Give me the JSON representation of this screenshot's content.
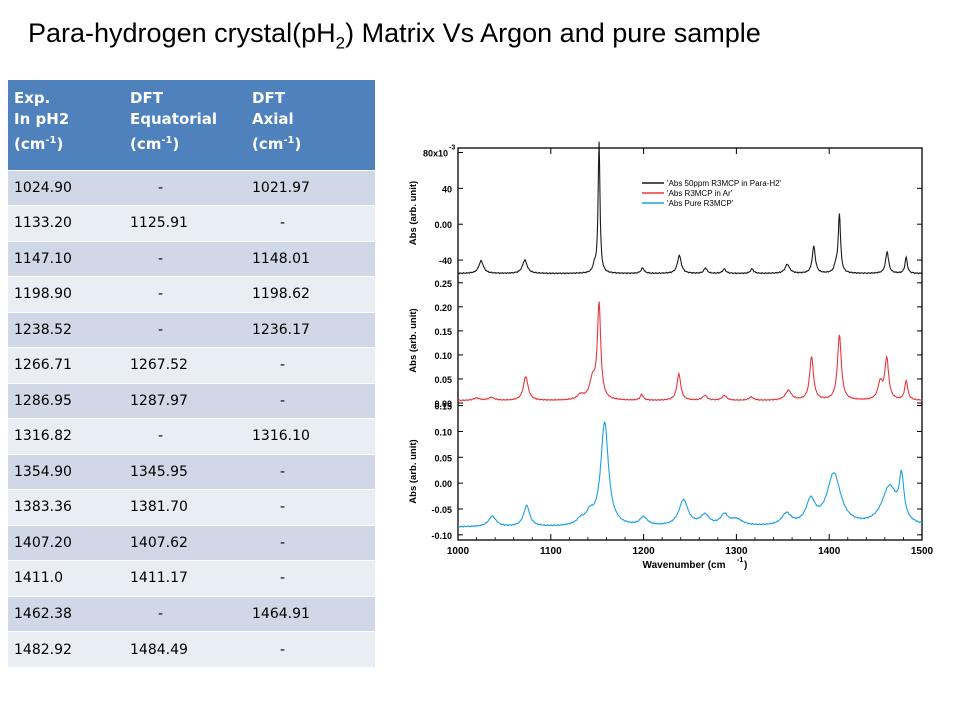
{
  "title": {
    "prefix": "Para-hydrogen crystal(pH",
    "sub": "2",
    "suffix": ") Matrix Vs Argon and pure sample"
  },
  "table": {
    "headers": [
      {
        "line1": "Exp.",
        "line2": "In pH2",
        "unit": "(cm",
        "exp": "-1",
        "close": ")"
      },
      {
        "line1": "DFT",
        "line2": "Equatorial",
        "unit": "(cm",
        "exp": "-1",
        "close": ")"
      },
      {
        "line1": "DFT",
        "line2": "Axial",
        "unit": "(cm",
        "exp": "-1",
        "close": ")"
      }
    ],
    "rows": [
      [
        "1024.90",
        "-",
        "1021.97"
      ],
      [
        "1133.20",
        "1125.91",
        "-"
      ],
      [
        "1147.10",
        "-",
        "1148.01"
      ],
      [
        "1198.90",
        "-",
        "1198.62"
      ],
      [
        "1238.52",
        "-",
        "1236.17"
      ],
      [
        "1266.71",
        "1267.52",
        "-"
      ],
      [
        "1286.95",
        "1287.97",
        "-"
      ],
      [
        "1316.82",
        "-",
        "1316.10"
      ],
      [
        "1354.90",
        "1345.95",
        "-"
      ],
      [
        "1383.36",
        "1381.70",
        "-"
      ],
      [
        "1407.20",
        "1407.62",
        "-"
      ],
      [
        "1411.0",
        "1411.17",
        "-"
      ],
      [
        "1462.38",
        "-",
        "1464.91"
      ],
      [
        "1482.92",
        "1484.49",
        "-"
      ]
    ]
  },
  "chart_data": {
    "type": "line",
    "xlabel": "Wavenumber (cm",
    "xlabel_exp": "-1",
    "xlabel_close": ")",
    "xlim": [
      1000,
      1500
    ],
    "xticks": [
      1000,
      1100,
      1200,
      1300,
      1400,
      1500
    ],
    "legend": {
      "placement": "top-right",
      "entries": [
        "'Abs 50ppm R3MCP in Para-H2'",
        "'Abs R3MCP in Ar'",
        "'Abs Pure R3MCP'"
      ]
    },
    "panels": [
      {
        "ylabel": "Abs (arb. unit)",
        "ylim": [
          -60,
          85
        ],
        "yticks": [
          -40,
          0,
          40
        ],
        "top_tick_label": "80x10",
        "top_tick_exp": "-3",
        "series": {
          "color": "#1a1a1a",
          "baseline": -55,
          "peaks": [
            [
              1024.9,
              3,
              14
            ],
            [
              1072,
              3,
              15
            ],
            [
              1147.1,
              2,
              8
            ],
            [
              1152,
              1.2,
              146
            ],
            [
              1198.9,
              2,
              6
            ],
            [
              1238.5,
              2.5,
              20
            ],
            [
              1266.7,
              2,
              6
            ],
            [
              1286.9,
              2,
              5
            ],
            [
              1316.8,
              2,
              5
            ],
            [
              1354.9,
              3,
              10
            ],
            [
              1383.4,
              2,
              30
            ],
            [
              1407.2,
              2,
              8
            ],
            [
              1411,
              1.5,
              65
            ],
            [
              1462.4,
              2,
              24
            ],
            [
              1482.9,
              1.5,
              18
            ]
          ]
        }
      },
      {
        "ylabel": "Abs (arb. unit)",
        "ylim": [
          0,
          0.26
        ],
        "yticks": [
          0,
          0.05,
          0.1,
          0.15,
          0.2,
          0.25
        ],
        "series": {
          "color": "#e8383d",
          "baseline": 0.005,
          "peaks": [
            [
              1020,
              4,
              0.005
            ],
            [
              1036,
              4,
              0.006
            ],
            [
              1073,
              3,
              0.05
            ],
            [
              1132,
              4,
              0.01
            ],
            [
              1145,
              4,
              0.04
            ],
            [
              1152,
              2.2,
              0.195
            ],
            [
              1198,
              2,
              0.012
            ],
            [
              1238,
              2.5,
              0.055
            ],
            [
              1266,
              3,
              0.01
            ],
            [
              1287,
              3,
              0.01
            ],
            [
              1316,
              3,
              0.007
            ],
            [
              1356,
              4,
              0.02
            ],
            [
              1381,
              2.5,
              0.09
            ],
            [
              1411,
              2.5,
              0.135
            ],
            [
              1455,
              3,
              0.035
            ],
            [
              1462,
              2.5,
              0.085
            ],
            [
              1483,
              2,
              0.04
            ]
          ]
        }
      },
      {
        "ylabel": "Abs (arb. unit)",
        "ylim": [
          -0.11,
          0.155
        ],
        "yticks": [
          -0.1,
          -0.05,
          0,
          0.05,
          0.1,
          0.15
        ],
        "series": {
          "color": "#1ba1e2",
          "baseline": -0.085,
          "peaks": [
            [
              1037,
              5,
              0.02
            ],
            [
              1074,
              4,
              0.04
            ],
            [
              1132,
              5,
              0.01
            ],
            [
              1142,
              5,
              0.02
            ],
            [
              1158,
              5,
              0.2
            ],
            [
              1200,
              5,
              0.016
            ],
            [
              1243,
              6,
              0.05
            ],
            [
              1266,
              6,
              0.02
            ],
            [
              1287,
              5,
              0.02
            ],
            [
              1300,
              8,
              0.012
            ],
            [
              1354,
              6,
              0.022
            ],
            [
              1380,
              6,
              0.045
            ],
            [
              1405,
              9,
              0.1
            ],
            [
              1465,
              10,
              0.075
            ],
            [
              1478,
              3,
              0.08
            ]
          ]
        }
      }
    ]
  }
}
